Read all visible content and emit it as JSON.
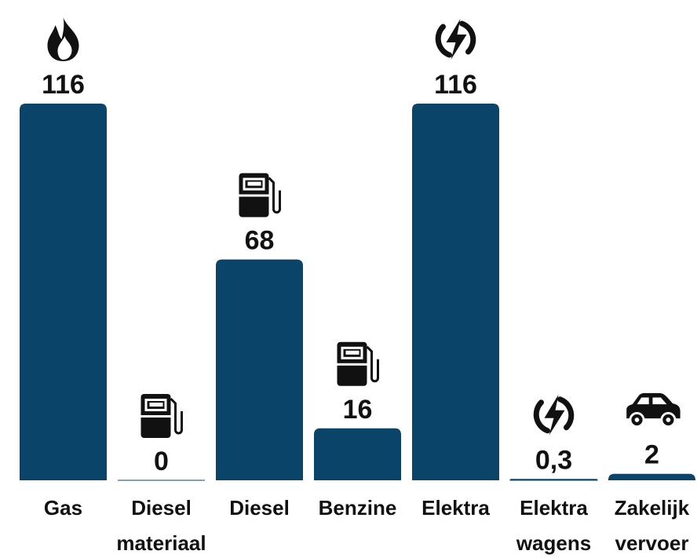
{
  "chart_data": {
    "type": "bar",
    "categories": [
      "Gas",
      "Diesel materiaal",
      "Diesel",
      "Benzine",
      "Elektra",
      "Elektra wagens",
      "Zakelijk vervoer"
    ],
    "values": [
      116,
      0,
      68,
      16,
      116,
      0.3,
      2
    ],
    "value_labels": [
      "116",
      "0",
      "68",
      "16",
      "116",
      "0,3",
      "2"
    ],
    "color": "#0a4468"
  }
}
